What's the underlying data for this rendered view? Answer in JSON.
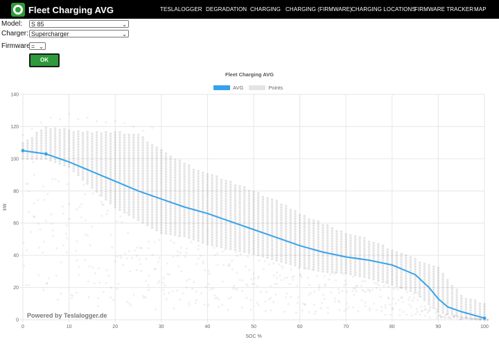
{
  "app": {
    "title": "Fleet Charging AVG"
  },
  "nav": [
    "TESLALOGGER",
    "DEGRADATION",
    "CHARGING",
    "CHARGING (FIRMWARE)",
    "CHARGING LOCATIONS",
    "FIRMWARE TRACKER",
    "MAP"
  ],
  "form": {
    "model_label": "Model:",
    "model_value": "S 85",
    "charger_label": "Charger:",
    "charger_value": "Supercharger",
    "firmware_label": "Firmware:",
    "firmware_value": "=",
    "ok_label": "OK"
  },
  "colors": {
    "accent": "#2e9a3b",
    "avg_line": "#36a2eb",
    "points": "#4a4a4a",
    "navbar": "#000000"
  },
  "chart_data": {
    "type": "scatter",
    "title": "Fleet Charging AVG",
    "xlabel": "SOC %",
    "ylabel": "kW",
    "xlim": [
      0,
      100
    ],
    "ylim": [
      0,
      140
    ],
    "xticks": [
      0,
      10,
      20,
      30,
      40,
      50,
      60,
      70,
      80,
      90,
      100
    ],
    "yticks": [
      0,
      20,
      40,
      60,
      80,
      100,
      120,
      140
    ],
    "grid": true,
    "legend_position": "top",
    "watermark": "Powered by Teslalogger.de",
    "series": [
      {
        "name": "AVG",
        "type": "line",
        "x": [
          0,
          5,
          10,
          15,
          20,
          25,
          30,
          35,
          40,
          45,
          50,
          55,
          60,
          65,
          70,
          75,
          80,
          85,
          88,
          90,
          92,
          95,
          100
        ],
        "y": [
          105,
          103,
          98,
          92,
          86,
          80,
          75,
          70,
          66,
          61,
          56,
          51,
          46,
          42,
          39,
          37,
          34,
          28,
          20,
          13,
          8,
          5,
          1
        ]
      },
      {
        "name": "Points",
        "type": "scatter",
        "band": {
          "x": [
            0,
            5,
            10,
            15,
            20,
            25,
            30,
            35,
            40,
            45,
            50,
            55,
            60,
            65,
            70,
            75,
            80,
            85,
            90,
            95,
            100
          ],
          "upper": [
            110,
            120,
            118,
            117,
            117,
            115,
            106,
            97,
            91,
            86,
            80,
            74,
            66,
            60,
            54,
            50,
            44,
            38,
            33,
            15,
            10
          ],
          "lower": [
            100,
            100,
            95,
            82,
            70,
            62,
            54,
            52,
            47,
            44,
            41,
            37,
            33,
            30,
            29,
            26,
            22,
            17,
            5,
            2,
            0
          ]
        }
      }
    ]
  }
}
